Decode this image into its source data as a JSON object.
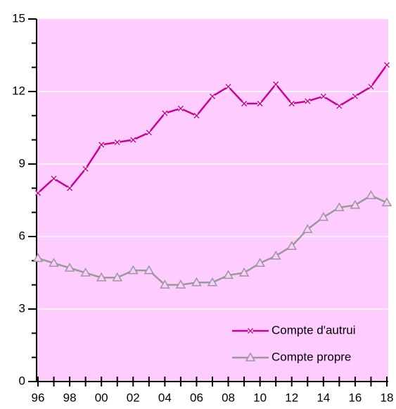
{
  "chart_data": {
    "type": "line",
    "categories": [
      "96",
      null,
      "98",
      null,
      "00",
      null,
      "02",
      null,
      "04",
      null,
      "06",
      null,
      "08",
      null,
      "10",
      null,
      "12",
      null,
      "14",
      null,
      "16",
      null,
      "18"
    ],
    "series": [
      {
        "name": "Compte d'autrui",
        "color": "#cc0099",
        "marker": "x",
        "values": [
          7.8,
          8.4,
          8.0,
          8.8,
          9.8,
          9.9,
          10.0,
          10.3,
          11.1,
          11.3,
          11.0,
          11.8,
          12.2,
          11.5,
          11.5,
          12.3,
          11.5,
          11.6,
          11.8,
          11.4,
          11.8,
          12.2,
          13.1
        ]
      },
      {
        "name": "Compte propre",
        "color": "#999999",
        "marker": "triangle",
        "values": [
          5.1,
          4.9,
          4.7,
          4.5,
          4.3,
          4.3,
          4.6,
          4.6,
          4.0,
          4.0,
          4.1,
          4.1,
          4.4,
          4.5,
          4.9,
          5.2,
          5.6,
          6.3,
          6.8,
          7.2,
          7.3,
          7.7,
          7.4
        ]
      }
    ],
    "ylim": [
      0,
      15
    ],
    "yticks": [
      0,
      3,
      6,
      9,
      12,
      15
    ],
    "grid": true,
    "background": "#ffccff",
    "legend": "lower right"
  }
}
